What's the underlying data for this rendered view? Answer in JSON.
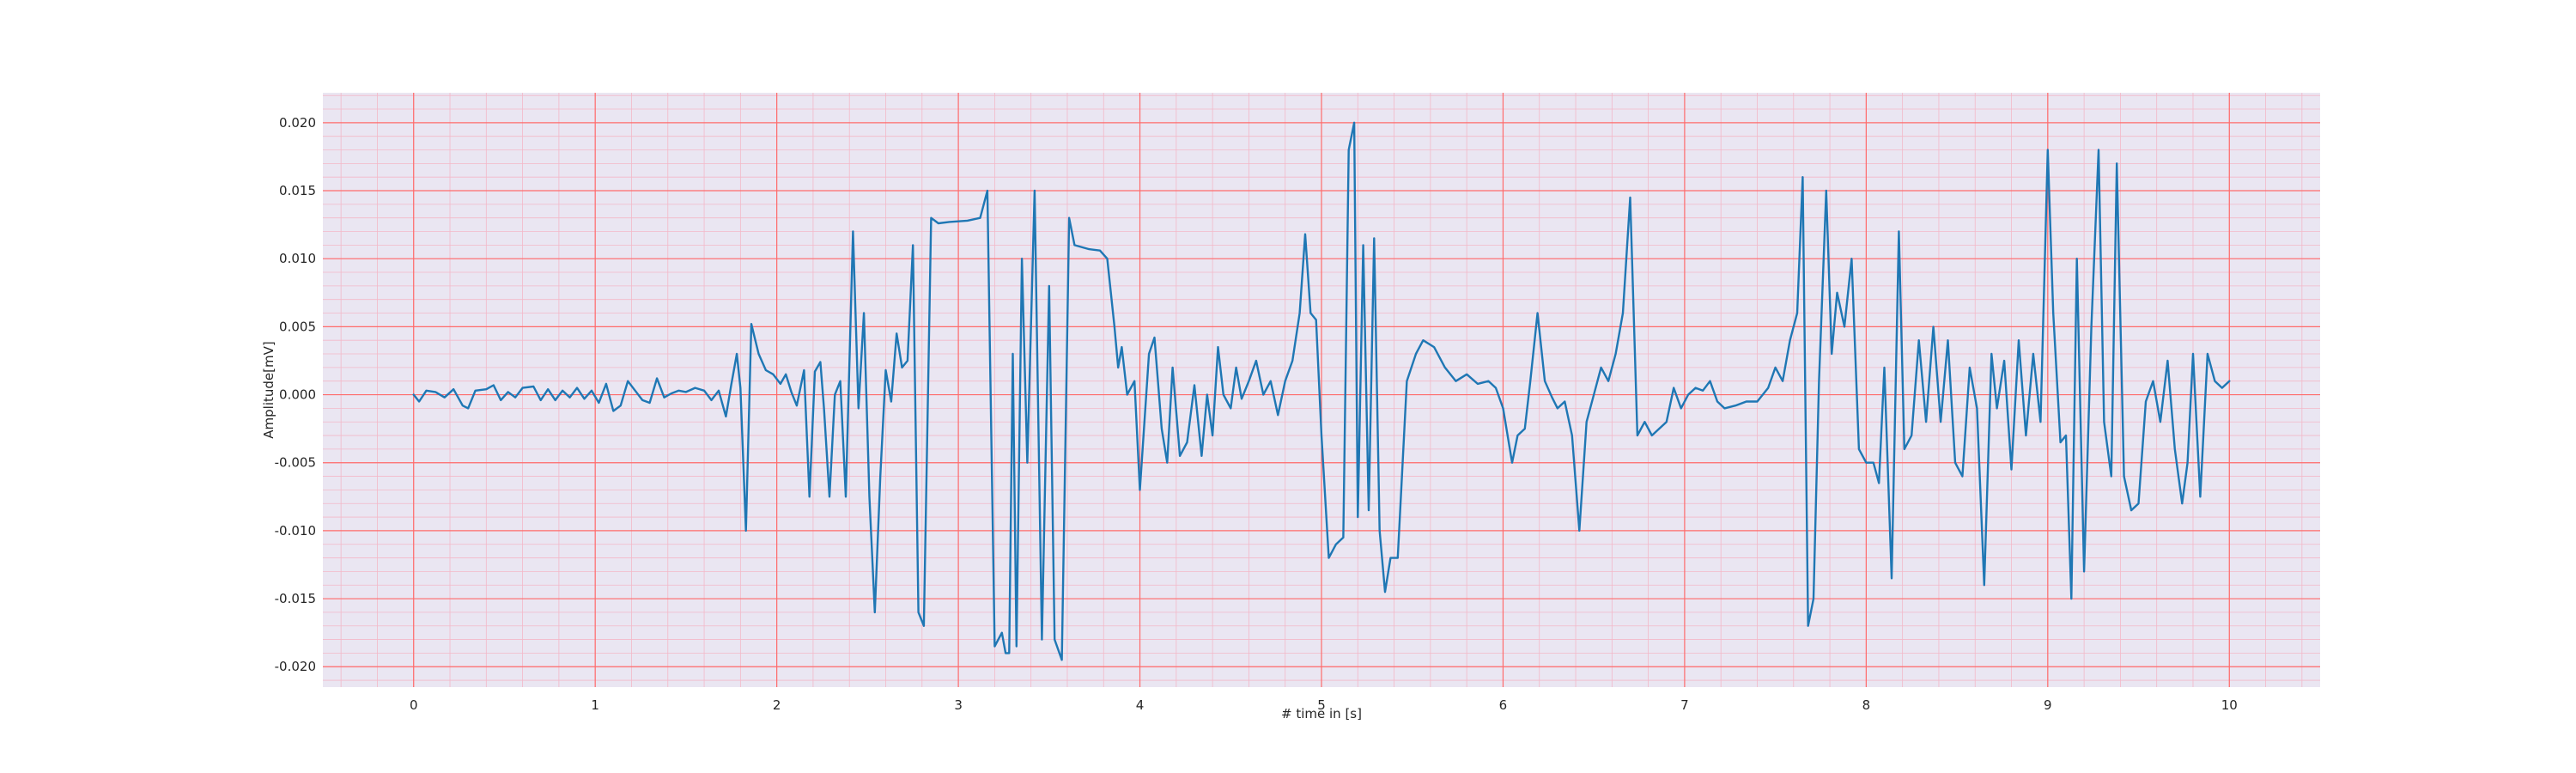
{
  "chart_data": {
    "type": "line",
    "title": "",
    "xlabel": "# time in [s]",
    "ylabel": "Amplitude[mV]",
    "xlim": [
      -0.5,
      10.5
    ],
    "ylim": [
      -0.0215,
      0.0222
    ],
    "x_ticks": [
      0,
      1,
      2,
      3,
      4,
      5,
      6,
      7,
      8,
      9,
      10
    ],
    "x_tick_labels": [
      "0",
      "1",
      "2",
      "3",
      "4",
      "5",
      "6",
      "7",
      "8",
      "9",
      "10"
    ],
    "y_ticks": [
      -0.02,
      -0.015,
      -0.01,
      -0.005,
      0.0,
      0.005,
      0.01,
      0.015,
      0.02
    ],
    "y_tick_labels": [
      "-0.020",
      "-0.015",
      "-0.010",
      "-0.005",
      "0.000",
      "0.005",
      "0.010",
      "0.015",
      "0.020"
    ],
    "x_minor_step": 0.2,
    "y_minor_step": 0.001,
    "grid": true,
    "legend": "none",
    "colors": {
      "line": "#1f77b4",
      "background": "#eae6f2",
      "major_grid": "#ff6b6b",
      "minor_grid": "#f3b8c8",
      "text": "#262626"
    },
    "series": [
      {
        "name": "",
        "points": [
          [
            0.0,
            0.0
          ],
          [
            0.03,
            -0.0005
          ],
          [
            0.07,
            0.0003
          ],
          [
            0.12,
            0.0002
          ],
          [
            0.17,
            -0.0002
          ],
          [
            0.22,
            0.0004
          ],
          [
            0.27,
            -0.0008
          ],
          [
            0.3,
            -0.001
          ],
          [
            0.34,
            0.0003
          ],
          [
            0.4,
            0.0004
          ],
          [
            0.44,
            0.0007
          ],
          [
            0.48,
            -0.0004
          ],
          [
            0.52,
            0.0002
          ],
          [
            0.56,
            -0.0002
          ],
          [
            0.6,
            0.0005
          ],
          [
            0.66,
            0.0006
          ],
          [
            0.7,
            -0.0004
          ],
          [
            0.74,
            0.0004
          ],
          [
            0.78,
            -0.0004
          ],
          [
            0.82,
            0.0003
          ],
          [
            0.86,
            -0.0002
          ],
          [
            0.9,
            0.0005
          ],
          [
            0.94,
            -0.0003
          ],
          [
            0.98,
            0.0003
          ],
          [
            1.02,
            -0.0006
          ],
          [
            1.06,
            0.0008
          ],
          [
            1.1,
            -0.0012
          ],
          [
            1.14,
            -0.0008
          ],
          [
            1.18,
            0.001
          ],
          [
            1.22,
            0.0003
          ],
          [
            1.26,
            -0.0004
          ],
          [
            1.3,
            -0.0006
          ],
          [
            1.34,
            0.0012
          ],
          [
            1.38,
            -0.0002
          ],
          [
            1.42,
            0.0001
          ],
          [
            1.46,
            0.0003
          ],
          [
            1.5,
            0.0002
          ],
          [
            1.55,
            0.0005
          ],
          [
            1.6,
            0.0003
          ],
          [
            1.64,
            -0.0004
          ],
          [
            1.68,
            0.0003
          ],
          [
            1.72,
            -0.0016
          ],
          [
            1.75,
            0.0008
          ],
          [
            1.78,
            0.003
          ],
          [
            1.8,
            0.0005
          ],
          [
            1.83,
            -0.01
          ],
          [
            1.86,
            0.0052
          ],
          [
            1.9,
            0.003
          ],
          [
            1.94,
            0.0018
          ],
          [
            1.98,
            0.0015
          ],
          [
            2.02,
            0.0008
          ],
          [
            2.05,
            0.0015
          ],
          [
            2.08,
            0.0002
          ],
          [
            2.11,
            -0.0008
          ],
          [
            2.15,
            0.0018
          ],
          [
            2.18,
            -0.0075
          ],
          [
            2.21,
            0.0017
          ],
          [
            2.24,
            0.0024
          ],
          [
            2.26,
            -0.001
          ],
          [
            2.29,
            -0.0075
          ],
          [
            2.32,
            0.0
          ],
          [
            2.35,
            0.001
          ],
          [
            2.38,
            -0.0075
          ],
          [
            2.42,
            0.012
          ],
          [
            2.45,
            -0.001
          ],
          [
            2.48,
            0.006
          ],
          [
            2.51,
            -0.0075
          ],
          [
            2.54,
            -0.016
          ],
          [
            2.57,
            -0.006
          ],
          [
            2.6,
            0.0018
          ],
          [
            2.63,
            -0.0005
          ],
          [
            2.66,
            0.0045
          ],
          [
            2.69,
            0.002
          ],
          [
            2.72,
            0.0025
          ],
          [
            2.75,
            0.011
          ],
          [
            2.78,
            -0.016
          ],
          [
            2.81,
            -0.017
          ],
          [
            2.85,
            0.013
          ],
          [
            2.89,
            0.0126
          ],
          [
            2.95,
            0.0127
          ],
          [
            3.05,
            0.0128
          ],
          [
            3.12,
            0.013
          ],
          [
            3.16,
            0.015
          ],
          [
            3.2,
            -0.0185
          ],
          [
            3.24,
            -0.0175
          ],
          [
            3.26,
            -0.019
          ],
          [
            3.28,
            -0.019
          ],
          [
            3.3,
            0.003
          ],
          [
            3.32,
            -0.0185
          ],
          [
            3.35,
            0.01
          ],
          [
            3.38,
            -0.005
          ],
          [
            3.42,
            0.015
          ],
          [
            3.46,
            -0.018
          ],
          [
            3.5,
            0.008
          ],
          [
            3.53,
            -0.018
          ],
          [
            3.57,
            -0.0195
          ],
          [
            3.61,
            0.013
          ],
          [
            3.64,
            0.011
          ],
          [
            3.72,
            0.0107
          ],
          [
            3.78,
            0.0106
          ],
          [
            3.82,
            0.01
          ],
          [
            3.86,
            0.005
          ],
          [
            3.88,
            0.002
          ],
          [
            3.9,
            0.0035
          ],
          [
            3.93,
            0.0
          ],
          [
            3.97,
            0.001
          ],
          [
            4.0,
            -0.007
          ],
          [
            4.05,
            0.003
          ],
          [
            4.08,
            0.0042
          ],
          [
            4.12,
            -0.0025
          ],
          [
            4.15,
            -0.005
          ],
          [
            4.18,
            0.002
          ],
          [
            4.22,
            -0.0045
          ],
          [
            4.26,
            -0.0035
          ],
          [
            4.3,
            0.0007
          ],
          [
            4.34,
            -0.0045
          ],
          [
            4.37,
            0.0
          ],
          [
            4.4,
            -0.003
          ],
          [
            4.43,
            0.0035
          ],
          [
            4.46,
            0.0
          ],
          [
            4.5,
            -0.001
          ],
          [
            4.53,
            0.002
          ],
          [
            4.56,
            -0.0003
          ],
          [
            4.6,
            0.001
          ],
          [
            4.64,
            0.0025
          ],
          [
            4.68,
            0.0
          ],
          [
            4.72,
            0.001
          ],
          [
            4.76,
            -0.0015
          ],
          [
            4.8,
            0.001
          ],
          [
            4.84,
            0.0025
          ],
          [
            4.88,
            0.006
          ],
          [
            4.91,
            0.0118
          ],
          [
            4.94,
            0.006
          ],
          [
            4.97,
            0.0055
          ],
          [
            5.0,
            -0.003
          ],
          [
            5.04,
            -0.012
          ],
          [
            5.08,
            -0.011
          ],
          [
            5.12,
            -0.0105
          ],
          [
            5.15,
            0.018
          ],
          [
            5.18,
            0.02
          ],
          [
            5.2,
            -0.009
          ],
          [
            5.23,
            0.011
          ],
          [
            5.26,
            -0.0085
          ],
          [
            5.29,
            0.0115
          ],
          [
            5.32,
            -0.01
          ],
          [
            5.35,
            -0.0145
          ],
          [
            5.38,
            -0.012
          ],
          [
            5.42,
            -0.012
          ],
          [
            5.47,
            0.001
          ],
          [
            5.52,
            0.003
          ],
          [
            5.56,
            0.004
          ],
          [
            5.62,
            0.0035
          ],
          [
            5.68,
            0.002
          ],
          [
            5.74,
            0.001
          ],
          [
            5.8,
            0.0015
          ],
          [
            5.86,
            0.0008
          ],
          [
            5.92,
            0.001
          ],
          [
            5.96,
            0.0005
          ],
          [
            6.0,
            -0.001
          ],
          [
            6.05,
            -0.005
          ],
          [
            6.08,
            -0.003
          ],
          [
            6.12,
            -0.0025
          ],
          [
            6.15,
            0.001
          ],
          [
            6.19,
            0.006
          ],
          [
            6.23,
            0.001
          ],
          [
            6.27,
            -0.0002
          ],
          [
            6.3,
            -0.001
          ],
          [
            6.34,
            -0.0005
          ],
          [
            6.38,
            -0.003
          ],
          [
            6.42,
            -0.01
          ],
          [
            6.46,
            -0.002
          ],
          [
            6.5,
            0.0
          ],
          [
            6.54,
            0.002
          ],
          [
            6.58,
            0.001
          ],
          [
            6.62,
            0.003
          ],
          [
            6.66,
            0.006
          ],
          [
            6.7,
            0.0145
          ],
          [
            6.74,
            -0.003
          ],
          [
            6.78,
            -0.002
          ],
          [
            6.82,
            -0.003
          ],
          [
            6.86,
            -0.0025
          ],
          [
            6.9,
            -0.002
          ],
          [
            6.94,
            0.0005
          ],
          [
            6.98,
            -0.001
          ],
          [
            7.02,
            0.0
          ],
          [
            7.06,
            0.0005
          ],
          [
            7.1,
            0.0003
          ],
          [
            7.14,
            0.001
          ],
          [
            7.18,
            -0.0005
          ],
          [
            7.22,
            -0.001
          ],
          [
            7.28,
            -0.0008
          ],
          [
            7.34,
            -0.0005
          ],
          [
            7.4,
            -0.0005
          ],
          [
            7.46,
            0.0005
          ],
          [
            7.5,
            0.002
          ],
          [
            7.54,
            0.001
          ],
          [
            7.58,
            0.004
          ],
          [
            7.62,
            0.006
          ],
          [
            7.65,
            0.016
          ],
          [
            7.68,
            -0.017
          ],
          [
            7.71,
            -0.015
          ],
          [
            7.74,
            0.001
          ],
          [
            7.78,
            0.015
          ],
          [
            7.81,
            0.003
          ],
          [
            7.84,
            0.0075
          ],
          [
            7.88,
            0.005
          ],
          [
            7.92,
            0.01
          ],
          [
            7.96,
            -0.004
          ],
          [
            8.0,
            -0.005
          ],
          [
            8.04,
            -0.005
          ],
          [
            8.07,
            -0.0065
          ],
          [
            8.1,
            0.002
          ],
          [
            8.14,
            -0.0135
          ],
          [
            8.18,
            0.012
          ],
          [
            8.21,
            -0.004
          ],
          [
            8.25,
            -0.003
          ],
          [
            8.29,
            0.004
          ],
          [
            8.33,
            -0.002
          ],
          [
            8.37,
            0.005
          ],
          [
            8.41,
            -0.002
          ],
          [
            8.45,
            0.004
          ],
          [
            8.49,
            -0.005
          ],
          [
            8.53,
            -0.006
          ],
          [
            8.57,
            0.002
          ],
          [
            8.61,
            -0.001
          ],
          [
            8.65,
            -0.014
          ],
          [
            8.69,
            0.003
          ],
          [
            8.72,
            -0.001
          ],
          [
            8.76,
            0.0025
          ],
          [
            8.8,
            -0.0055
          ],
          [
            8.84,
            0.004
          ],
          [
            8.88,
            -0.003
          ],
          [
            8.92,
            0.003
          ],
          [
            8.96,
            -0.002
          ],
          [
            9.0,
            0.018
          ],
          [
            9.03,
            0.006
          ],
          [
            9.07,
            -0.0035
          ],
          [
            9.1,
            -0.003
          ],
          [
            9.13,
            -0.015
          ],
          [
            9.16,
            0.01
          ],
          [
            9.2,
            -0.013
          ],
          [
            9.24,
            0.005
          ],
          [
            9.28,
            0.018
          ],
          [
            9.31,
            -0.002
          ],
          [
            9.35,
            -0.006
          ],
          [
            9.38,
            0.017
          ],
          [
            9.42,
            -0.006
          ],
          [
            9.46,
            -0.0085
          ],
          [
            9.5,
            -0.008
          ],
          [
            9.54,
            -0.0005
          ],
          [
            9.58,
            0.001
          ],
          [
            9.62,
            -0.002
          ],
          [
            9.66,
            0.0025
          ],
          [
            9.7,
            -0.004
          ],
          [
            9.74,
            -0.008
          ],
          [
            9.77,
            -0.005
          ],
          [
            9.8,
            0.003
          ],
          [
            9.84,
            -0.0075
          ],
          [
            9.88,
            0.003
          ],
          [
            9.92,
            0.001
          ],
          [
            9.96,
            0.0005
          ],
          [
            10.0,
            0.001
          ]
        ]
      }
    ]
  }
}
